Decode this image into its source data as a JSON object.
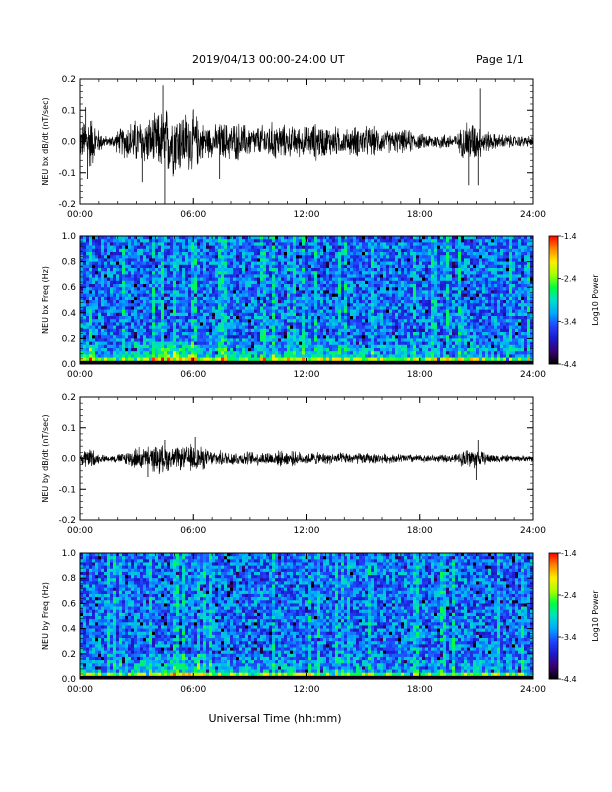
{
  "header": {
    "title": "2019/04/13  00:00-24:00 UT",
    "page": "Page 1/1"
  },
  "xaxis_label": "Universal Time (hh:mm)",
  "colors": {
    "trace": "#000000",
    "colormap": [
      "#000000",
      "#3a0070",
      "#1a1acc",
      "#2244ff",
      "#00aaff",
      "#00e0c0",
      "#00ff40",
      "#aaff00",
      "#ffee00",
      "#ff8800",
      "#ff0000"
    ]
  },
  "chart_data": [
    {
      "type": "line",
      "title": "",
      "xlabel": "",
      "ylabel": "NEU bx dB/dt (nT/sec)",
      "xlim": [
        "00:00",
        "24:00"
      ],
      "xticks": [
        "00:00",
        "06:00",
        "12:00",
        "18:00",
        "24:00"
      ],
      "ylim": [
        -0.2,
        0.2
      ],
      "yticks": [
        "0.2",
        "0.1",
        "0.0",
        "-0.1",
        "-0.2"
      ],
      "series": [
        {
          "x_hours": [
            0,
            0.5,
            1,
            1.5,
            2,
            2.5,
            3,
            3.5,
            4,
            4.5,
            5,
            5.5,
            6,
            6.5,
            7,
            7.5,
            8,
            8.5,
            9,
            9.5,
            10,
            10.5,
            11,
            11.5,
            12,
            12.5,
            13,
            13.5,
            14,
            14.5,
            15,
            15.5,
            16,
            16.5,
            17,
            17.5,
            18,
            18.5,
            19,
            19.5,
            20,
            20.5,
            21,
            21.5,
            22,
            22.5,
            23,
            23.5,
            24
          ],
          "amplitude": [
            0.04,
            0.08,
            0.03,
            0.01,
            0.03,
            0.05,
            0.06,
            0.06,
            0.07,
            0.09,
            0.09,
            0.08,
            0.08,
            0.05,
            0.04,
            0.05,
            0.05,
            0.05,
            0.04,
            0.04,
            0.05,
            0.05,
            0.04,
            0.04,
            0.04,
            0.05,
            0.04,
            0.04,
            0.03,
            0.04,
            0.04,
            0.04,
            0.03,
            0.03,
            0.03,
            0.03,
            0.02,
            0.02,
            0.02,
            0.02,
            0.02,
            0.06,
            0.05,
            0.03,
            0.02,
            0.02,
            0.015,
            0.015,
            0.015
          ],
          "spikes": [
            {
              "x": 0.3,
              "y": 0.11
            },
            {
              "x": 0.4,
              "y": -0.12
            },
            {
              "x": 4.4,
              "y": 0.18
            },
            {
              "x": 4.5,
              "y": -0.2
            },
            {
              "x": 3.3,
              "y": -0.13
            },
            {
              "x": 7.4,
              "y": -0.12
            },
            {
              "x": 20.6,
              "y": -0.14
            },
            {
              "x": 21.2,
              "y": 0.17
            },
            {
              "x": 21.1,
              "y": -0.14
            }
          ]
        }
      ]
    },
    {
      "type": "heatmap",
      "title": "",
      "xlabel": "",
      "ylabel": "NEU bx Freq (Hz)",
      "xlim": [
        "00:00",
        "24:00"
      ],
      "xticks": [
        "00:00",
        "06:00",
        "12:00",
        "18:00",
        "24:00"
      ],
      "ylim": [
        0.0,
        1.0
      ],
      "yticks": [
        "1.0",
        "0.8",
        "0.6",
        "0.4",
        "0.2",
        "0.0"
      ],
      "colorbar": {
        "label": "Log10 Power",
        "range": [
          -4.4,
          -1.4
        ],
        "ticks": [
          "-1.4",
          "-2.4",
          "-3.4",
          "-4.4"
        ]
      }
    },
    {
      "type": "line",
      "title": "",
      "xlabel": "",
      "ylabel": "NEU by dB/dt (nT/sec)",
      "xlim": [
        "00:00",
        "24:00"
      ],
      "xticks": [
        "00:00",
        "06:00",
        "12:00",
        "18:00",
        "24:00"
      ],
      "ylim": [
        -0.2,
        0.2
      ],
      "yticks": [
        "0.2",
        "0.1",
        "0.0",
        "-0.1",
        "-0.2"
      ],
      "series": [
        {
          "x_hours": [
            0,
            0.5,
            1,
            1.5,
            2,
            2.5,
            3,
            3.5,
            4,
            4.5,
            5,
            5.5,
            6,
            6.5,
            7,
            7.5,
            8,
            8.5,
            9,
            9.5,
            10,
            10.5,
            11,
            11.5,
            12,
            12.5,
            13,
            13.5,
            14,
            14.5,
            15,
            15.5,
            16,
            16.5,
            17,
            17.5,
            18,
            18.5,
            19,
            19.5,
            20,
            20.5,
            21,
            21.5,
            22,
            22.5,
            23,
            23.5,
            24
          ],
          "amplitude": [
            0.02,
            0.03,
            0.012,
            0.008,
            0.012,
            0.02,
            0.03,
            0.03,
            0.035,
            0.035,
            0.03,
            0.03,
            0.04,
            0.03,
            0.02,
            0.02,
            0.02,
            0.018,
            0.018,
            0.018,
            0.02,
            0.02,
            0.02,
            0.018,
            0.016,
            0.016,
            0.015,
            0.015,
            0.015,
            0.015,
            0.015,
            0.014,
            0.012,
            0.012,
            0.012,
            0.012,
            0.01,
            0.01,
            0.01,
            0.01,
            0.012,
            0.03,
            0.025,
            0.015,
            0.012,
            0.01,
            0.008,
            0.008,
            0.008
          ],
          "spikes": [
            {
              "x": 3.6,
              "y": -0.06
            },
            {
              "x": 4.5,
              "y": 0.06
            },
            {
              "x": 4.2,
              "y": -0.05
            },
            {
              "x": 6.1,
              "y": 0.07
            },
            {
              "x": 21.0,
              "y": -0.07
            },
            {
              "x": 21.1,
              "y": 0.06
            }
          ]
        }
      ]
    },
    {
      "type": "heatmap",
      "title": "",
      "xlabel": "",
      "ylabel": "NEU by Freq (Hz)",
      "xlim": [
        "00:00",
        "24:00"
      ],
      "xticks": [
        "00:00",
        "06:00",
        "12:00",
        "18:00",
        "24:00"
      ],
      "ylim": [
        0.0,
        1.0
      ],
      "yticks": [
        "1.0",
        "0.8",
        "0.6",
        "0.4",
        "0.2",
        "0.0"
      ],
      "colorbar": {
        "label": "Log10 Power",
        "range": [
          -4.4,
          -1.4
        ],
        "ticks": [
          "-1.4",
          "-2.4",
          "-3.4",
          "-4.4"
        ]
      }
    }
  ]
}
